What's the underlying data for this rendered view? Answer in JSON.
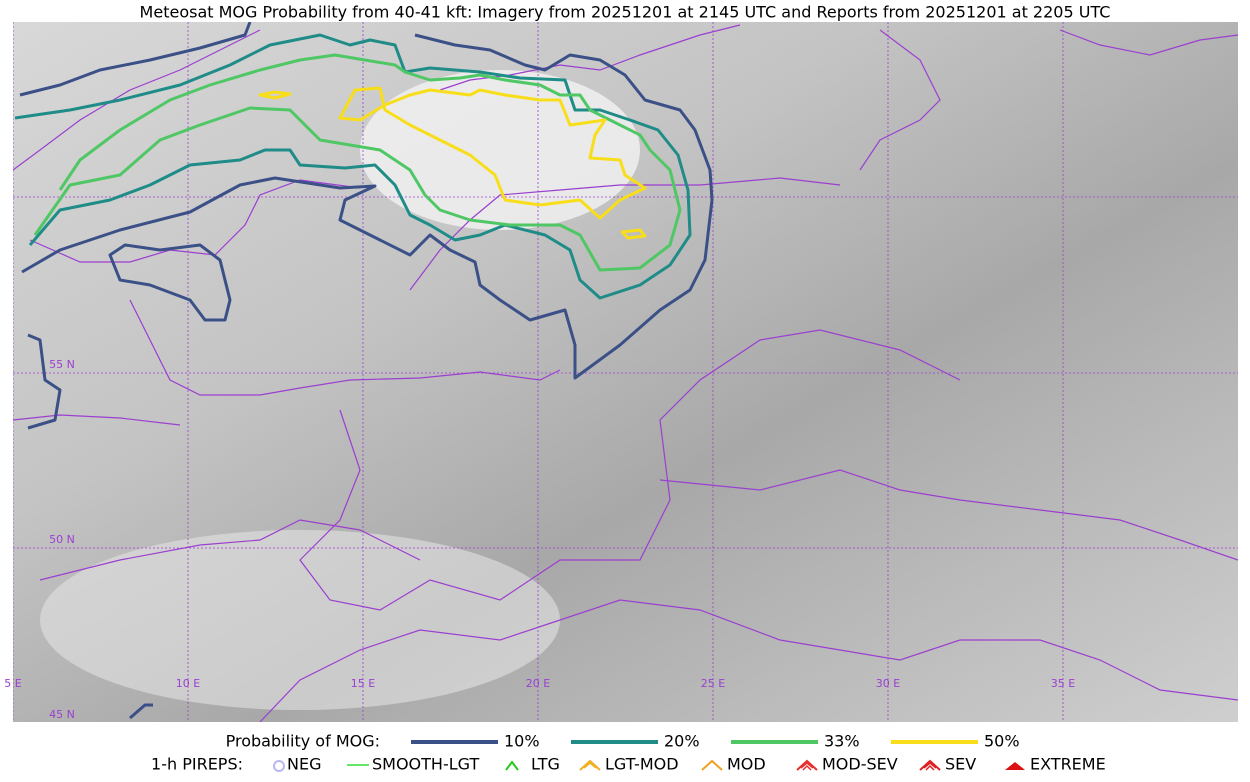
{
  "header": {
    "title": "Meteosat MOG Probability from 40-41 kft: Imagery from 20251201 at 2145 UTC and Reports from 20251201 at 2205 UTC"
  },
  "map": {
    "latitude_labels": [
      "55 N",
      "50 N",
      "45 N"
    ],
    "longitude_labels": [
      "5 E",
      "10 E",
      "15 E",
      "20 E",
      "25 E",
      "30 E",
      "35 E"
    ]
  },
  "legend": {
    "title": "Probability of MOG:",
    "levels": [
      {
        "label": "10%",
        "color": "#3b5087"
      },
      {
        "label": "20%",
        "color": "#1f8c88"
      },
      {
        "label": "33%",
        "color": "#4fc765"
      },
      {
        "label": "50%",
        "color": "#f8de1a"
      }
    ]
  },
  "pireps": {
    "title": "1-h PIREPS:",
    "items": [
      {
        "label": "NEG",
        "color": "#b8b8f0"
      },
      {
        "label": "SMOOTH-LGT",
        "color": "#33dd33"
      },
      {
        "label": "LTG",
        "color": "#22cc22"
      },
      {
        "label": "LGT-MOD",
        "color": "#f0b020"
      },
      {
        "label": "MOD",
        "color": "#f0a020"
      },
      {
        "label": "MOD-SEV",
        "color": "#e83030"
      },
      {
        "label": "SEV",
        "color": "#e02020"
      },
      {
        "label": "EXTREME",
        "color": "#dd1111"
      }
    ]
  }
}
